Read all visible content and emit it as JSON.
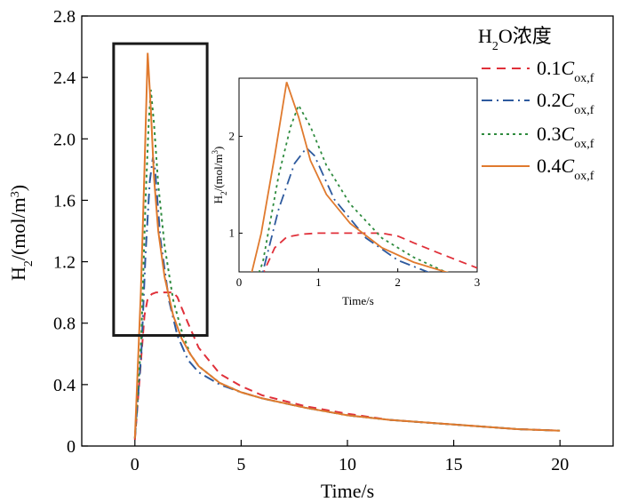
{
  "chart_data": {
    "type": "line",
    "xlabel": "Time/s",
    "ylabel": "H2/(mol/m3)",
    "xlim": [
      -2.5,
      22.5
    ],
    "ylim": [
      0,
      2.8
    ],
    "xticks": [
      "0",
      "5",
      "10",
      "15",
      "20"
    ],
    "yticks": [
      "0",
      "0.4",
      "0.8",
      "1.2",
      "1.6",
      "2.0",
      "2.4",
      "2.8"
    ],
    "legend": {
      "title": "H2O浓度",
      "placement": "top-right",
      "entries": [
        "0.1Cox,f",
        "0.2Cox,f",
        "0.3Cox,f",
        "0.4Cox,f"
      ]
    },
    "highlight_box": {
      "x": [
        -1,
        3.4
      ],
      "y": [
        0.72,
        2.62
      ]
    },
    "series": [
      {
        "name": "0.1Cox,f",
        "color": "#e0303a",
        "dash": "dashed",
        "x": [
          0,
          0.3,
          0.45,
          0.6,
          0.8,
          1.0,
          1.4,
          1.8,
          2.0,
          2.2,
          2.5,
          3.0,
          4.0,
          5.0,
          6.0,
          8.0,
          10.0,
          12.0,
          15.0,
          18.0,
          20.0
        ],
        "y": [
          0.04,
          0.58,
          0.85,
          0.96,
          0.99,
          1.0,
          1.0,
          1.0,
          0.97,
          0.9,
          0.8,
          0.64,
          0.47,
          0.39,
          0.33,
          0.26,
          0.21,
          0.17,
          0.14,
          0.11,
          0.1
        ]
      },
      {
        "name": "0.2Cox,f",
        "color": "#2e5a9e",
        "dash": "dashdot",
        "x": [
          0,
          0.3,
          0.5,
          0.7,
          0.85,
          0.95,
          1.2,
          1.6,
          2.0,
          2.5,
          3.0,
          4.0,
          5.0,
          6.0,
          8.0,
          10.0,
          12.0,
          15.0,
          18.0,
          20.0
        ],
        "y": [
          0.05,
          0.6,
          1.25,
          1.72,
          1.88,
          1.8,
          1.35,
          0.95,
          0.72,
          0.56,
          0.48,
          0.4,
          0.35,
          0.31,
          0.25,
          0.2,
          0.17,
          0.14,
          0.11,
          0.1
        ]
      },
      {
        "name": "0.3Cox,f",
        "color": "#2e8b3e",
        "dash": "dotted",
        "x": [
          0,
          0.3,
          0.5,
          0.65,
          0.75,
          0.9,
          1.1,
          1.4,
          1.8,
          2.2,
          2.6,
          3.0,
          4.0,
          5.0,
          6.0,
          8.0,
          10.0,
          12.0,
          15.0,
          18.0,
          20.0
        ],
        "y": [
          0.05,
          0.7,
          1.6,
          2.1,
          2.32,
          2.1,
          1.7,
          1.3,
          0.95,
          0.75,
          0.6,
          0.52,
          0.41,
          0.35,
          0.31,
          0.25,
          0.2,
          0.17,
          0.14,
          0.11,
          0.1
        ]
      },
      {
        "name": "0.4Cox,f",
        "color": "#e07a2e",
        "dash": "solid",
        "x": [
          0,
          0.28,
          0.45,
          0.6,
          0.75,
          0.9,
          1.1,
          1.4,
          1.8,
          2.2,
          2.6,
          3.0,
          4.0,
          5.0,
          6.0,
          8.0,
          10.0,
          12.0,
          15.0,
          18.0,
          20.0
        ],
        "y": [
          0.05,
          1.0,
          1.8,
          2.56,
          2.2,
          1.75,
          1.4,
          1.1,
          0.85,
          0.7,
          0.6,
          0.52,
          0.41,
          0.35,
          0.31,
          0.25,
          0.2,
          0.17,
          0.14,
          0.11,
          0.1
        ]
      }
    ],
    "inset": {
      "xlabel": "Time/s",
      "ylabel": "H2/(mol/m3)",
      "xlim": [
        0,
        3
      ],
      "ylim": [
        0.6,
        2.6
      ],
      "xticks": [
        "0",
        "1",
        "2",
        "3"
      ],
      "yticks": [
        "1",
        "2"
      ]
    }
  }
}
